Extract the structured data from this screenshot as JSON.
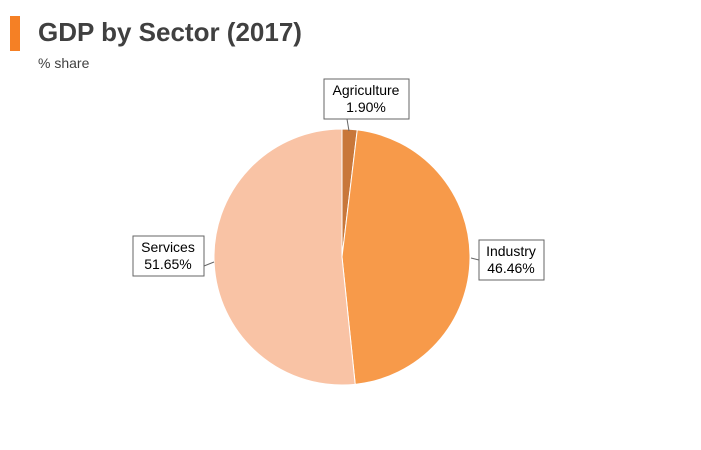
{
  "header": {
    "title": "GDP by Sector (2017)",
    "subtitle": "% share",
    "accent_color": "#f58025"
  },
  "chart_data": {
    "type": "pie",
    "title": "GDP by Sector (2017)",
    "subtitle": "% share",
    "start_angle_deg": 0,
    "direction": "clockwise",
    "slices": [
      {
        "label": "Agriculture",
        "value": 1.9,
        "value_label": "1.90%",
        "color": "#c8773a"
      },
      {
        "label": "Industry",
        "value": 46.46,
        "value_label": "46.46%",
        "color": "#f79a4a"
      },
      {
        "label": "Services",
        "value": 51.65,
        "value_label": "51.65%",
        "color": "#f9c3a5"
      }
    ]
  }
}
